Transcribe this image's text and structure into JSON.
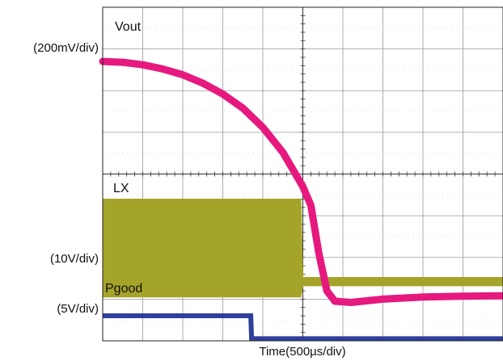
{
  "chart_data": {
    "type": "line",
    "title": "",
    "xlabel": "Time(500µs/div)",
    "ylabel": "",
    "grid": true,
    "divisions": {
      "x": 10,
      "y": 8
    },
    "xlim": [
      0,
      10
    ],
    "ylim": [
      -4,
      4
    ],
    "channels": [
      {
        "name": "Vout",
        "scale_label": "(200mV/div)",
        "color": "#e6197f"
      },
      {
        "name": "LX",
        "scale_label": "(10V/div)",
        "color": "#a5a42a"
      },
      {
        "name": "Pgood",
        "scale_label": "(5V/div)",
        "color": "#2e3f9c"
      }
    ],
    "series": [
      {
        "name": "Vout",
        "x": [
          0,
          0.5,
          1.0,
          1.5,
          2.0,
          2.5,
          3.0,
          3.5,
          4.0,
          4.5,
          5.0,
          5.2,
          5.4,
          5.6,
          5.8,
          6.2,
          7.0,
          8.0,
          9.0,
          10.0
        ],
        "y": [
          2.7,
          2.68,
          2.62,
          2.52,
          2.38,
          2.18,
          1.92,
          1.58,
          1.12,
          0.52,
          -0.3,
          -0.75,
          -1.9,
          -2.8,
          -3.05,
          -3.08,
          -3.0,
          -2.95,
          -2.93,
          -2.92
        ]
      },
      {
        "name": "LX",
        "x": [
          0,
          4.95,
          5.0,
          10.0
        ],
        "y_top": [
          -0.6,
          -0.6,
          -2.48,
          -2.48
        ],
        "y_bottom": [
          -2.95,
          -2.95,
          -2.68,
          -2.68
        ]
      },
      {
        "name": "Pgood",
        "x": [
          0,
          3.7,
          3.72,
          10.0
        ],
        "y": [
          -3.4,
          -3.4,
          -3.95,
          -3.95
        ]
      }
    ]
  }
}
